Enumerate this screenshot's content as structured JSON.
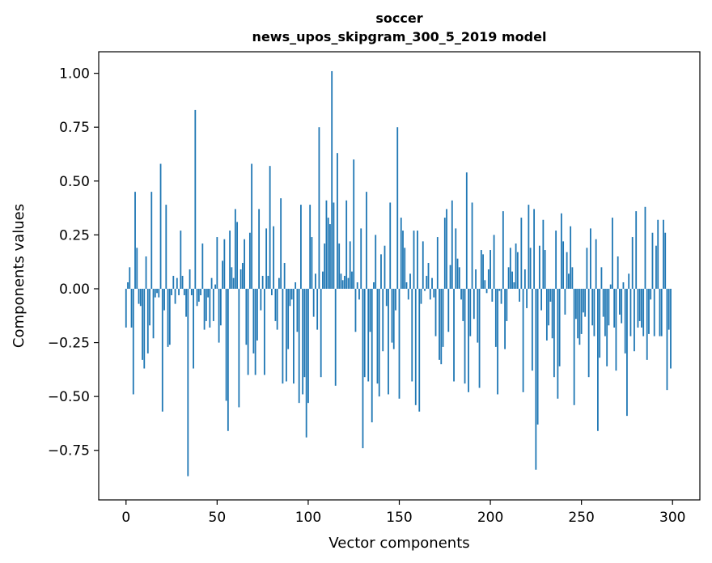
{
  "chart_data": {
    "type": "bar",
    "title": "soccer",
    "subtitle": "news_upos_skipgram_300_5_2019 model",
    "xlabel": "Vector components",
    "ylabel": "Components values",
    "xlim": [
      -15,
      315
    ],
    "ylim": [
      -0.98,
      1.1
    ],
    "xticks": [
      0,
      50,
      100,
      150,
      200,
      250,
      300
    ],
    "yticks": [
      -0.75,
      -0.5,
      -0.25,
      0.0,
      0.25,
      0.5,
      0.75,
      1.0
    ],
    "ytick_labels": [
      "−0.75",
      "−0.50",
      "−0.25",
      "0.00",
      "0.25",
      "0.50",
      "0.75",
      "1.00"
    ],
    "bar_color": "#1f77b4",
    "grid": false,
    "x": "0..299",
    "values": [
      -0.18,
      0.03,
      0.1,
      -0.18,
      -0.49,
      0.45,
      0.19,
      -0.07,
      -0.08,
      -0.33,
      -0.37,
      0.15,
      -0.3,
      -0.17,
      0.45,
      -0.23,
      -0.04,
      -0.02,
      -0.04,
      0.58,
      -0.57,
      -0.1,
      0.39,
      -0.27,
      -0.26,
      -0.03,
      0.06,
      -0.07,
      0.05,
      -0.03,
      0.27,
      0.06,
      -0.03,
      -0.13,
      -0.87,
      0.09,
      -0.03,
      -0.37,
      0.83,
      -0.08,
      -0.06,
      -0.03,
      0.21,
      -0.19,
      -0.15,
      -0.04,
      -0.18,
      0.05,
      -0.15,
      0.02,
      0.24,
      -0.25,
      -0.17,
      0.13,
      0.23,
      -0.52,
      -0.66,
      0.27,
      0.1,
      0.05,
      0.37,
      0.31,
      -0.55,
      0.09,
      0.12,
      0.23,
      -0.26,
      -0.4,
      0.26,
      0.58,
      -0.3,
      -0.4,
      -0.24,
      0.37,
      -0.1,
      0.06,
      -0.4,
      0.28,
      0.06,
      0.57,
      -0.03,
      0.29,
      -0.15,
      -0.19,
      0.05,
      0.42,
      -0.44,
      0.12,
      -0.43,
      -0.28,
      -0.08,
      -0.05,
      -0.44,
      0.03,
      -0.2,
      -0.53,
      0.39,
      -0.49,
      -0.41,
      -0.69,
      -0.53,
      0.39,
      0.24,
      -0.13,
      0.07,
      -0.19,
      0.75,
      -0.41,
      0.08,
      0.21,
      0.41,
      0.33,
      0.3,
      1.01,
      0.4,
      -0.45,
      0.63,
      0.21,
      0.07,
      0.04,
      0.06,
      0.41,
      0.05,
      0.22,
      0.08,
      0.6,
      -0.2,
      0.03,
      -0.05,
      0.28,
      -0.74,
      -0.41,
      0.45,
      -0.43,
      -0.2,
      -0.62,
      0.03,
      0.25,
      -0.44,
      -0.5,
      0.16,
      -0.29,
      0.2,
      -0.08,
      -0.49,
      0.4,
      -0.25,
      -0.28,
      -0.1,
      0.75,
      -0.51,
      0.33,
      0.27,
      0.19,
      0.03,
      -0.05,
      0.07,
      -0.43,
      0.27,
      -0.54,
      0.27,
      -0.57,
      -0.07,
      0.22,
      -0.01,
      0.06,
      0.12,
      -0.05,
      0.05,
      -0.04,
      -0.22,
      0.24,
      -0.33,
      -0.35,
      -0.27,
      0.33,
      0.37,
      -0.2,
      0.11,
      0.41,
      -0.43,
      0.28,
      0.14,
      0.1,
      -0.05,
      -0.15,
      -0.44,
      0.54,
      -0.48,
      -0.22,
      0.4,
      -0.14,
      0.09,
      -0.25,
      -0.46,
      0.18,
      0.16,
      0.04,
      -0.02,
      0.09,
      0.18,
      -0.06,
      0.25,
      -0.27,
      -0.49,
      -0.01,
      -0.07,
      0.36,
      -0.28,
      -0.15,
      0.1,
      0.19,
      0.08,
      0.03,
      0.21,
      0.17,
      -0.06,
      0.33,
      -0.48,
      0.09,
      -0.09,
      0.39,
      0.19,
      -0.38,
      0.37,
      -0.84,
      -0.63,
      0.2,
      -0.1,
      0.32,
      0.18,
      -0.24,
      -0.17,
      -0.06,
      -0.23,
      -0.41,
      0.27,
      -0.51,
      -0.36,
      0.35,
      0.22,
      -0.12,
      0.17,
      0.07,
      0.29,
      0.1,
      -0.54,
      -0.14,
      -0.23,
      -0.26,
      -0.21,
      -0.11,
      -0.13,
      0.19,
      -0.41,
      0.28,
      -0.17,
      -0.22,
      0.23,
      -0.66,
      -0.32,
      0.1,
      -0.13,
      -0.22,
      -0.36,
      -0.17,
      0.02,
      0.33,
      -0.18,
      -0.38,
      0.15,
      -0.12,
      -0.16,
      0.03,
      -0.3,
      -0.59,
      0.07,
      -0.22,
      0.24,
      -0.29,
      0.36,
      -0.18,
      -0.15,
      -0.18,
      -0.22,
      0.38,
      -0.33,
      -0.21,
      -0.05,
      0.26,
      -0.22,
      0.2,
      0.32,
      -0.22,
      -0.22,
      0.32,
      0.26,
      -0.47,
      -0.19,
      -0.37
    ]
  }
}
